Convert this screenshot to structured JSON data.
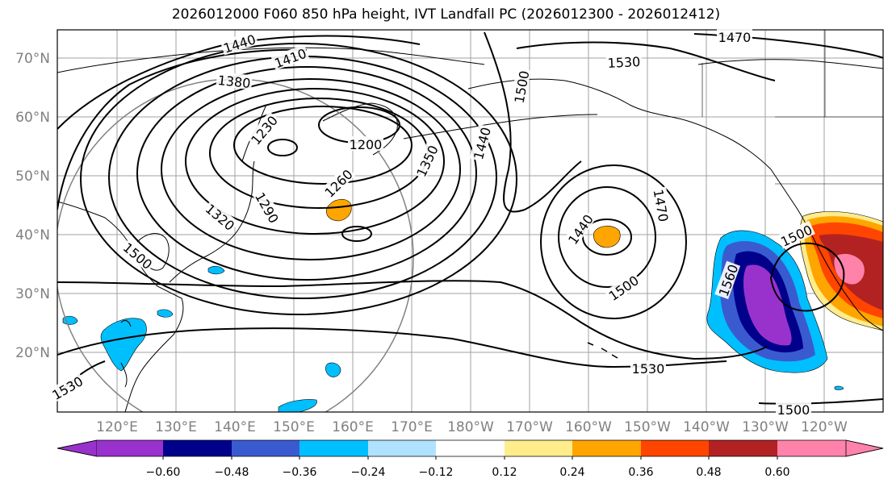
{
  "title": "2026012000 F060 850 hPa height, IVT Landfall PC (2026012300 - 2026012412)",
  "lat_labels": [
    "70°N",
    "60°N",
    "50°N",
    "40°N",
    "30°N",
    "20°N"
  ],
  "lon_labels": [
    "120°E",
    "130°E",
    "140°E",
    "150°E",
    "160°E",
    "170°E",
    "180°W",
    "170°W",
    "160°W",
    "150°W",
    "140°W",
    "130°W",
    "120°W"
  ],
  "contour_labels": [
    "1440",
    "1410",
    "1380",
    "1470",
    "1530",
    "1500",
    "1230",
    "1200",
    "1260",
    "1290",
    "1320",
    "1350",
    "1440",
    "1440",
    "1470",
    "1500",
    "1500",
    "1560",
    "1500",
    "1530",
    "1530",
    "1500"
  ],
  "colorbar": {
    "colors": [
      "#9932CC",
      "#00008B",
      "#3A5BD0",
      "#00BFFF",
      "#B0E2FF",
      "#FFFFFF",
      "#FFEC8B",
      "#FFA500",
      "#FF4500",
      "#B22222",
      "#FF82AB"
    ],
    "ticks": [
      "−0.60",
      "−0.48",
      "−0.36",
      "−0.24",
      "−0.12",
      "0.12",
      "0.24",
      "0.36",
      "0.48",
      "0.60"
    ]
  }
}
